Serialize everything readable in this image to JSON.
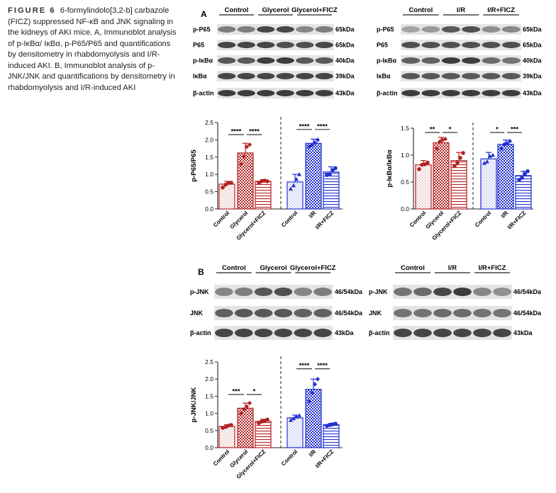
{
  "caption": {
    "label": "FIGURE 6",
    "text": "6-formylindolo[3,2-b] carbazole (FICZ) suppressed NF-κB and JNK signaling in the kidneys of AKI mice. A, Immunoblot analysis of p-IκBα/ IκBα, p-P65/P65 and quantifications by densitometry in rhabdomyolysis and I/R-induced AKI. B, Immunoblot analysis of p-JNK/JNK and quantifications by densitometry in rhabdomyolysis and I/R-induced AKI"
  },
  "colors": {
    "red": "#b22222",
    "blue": "#1f2fd0",
    "band": "#2a2a2a"
  },
  "blots": [
    {
      "id": "A-left",
      "panel": "A",
      "groups": [
        "Control",
        "Glycerol",
        "Glycerol+FICZ"
      ],
      "rows": [
        {
          "protein": "p-P65",
          "kda": "65kDa",
          "intensity": [
            0.55,
            0.55,
            0.85,
            0.85,
            0.5,
            0.55
          ]
        },
        {
          "protein": "P65",
          "kda": "65kDa",
          "intensity": [
            0.85,
            0.85,
            0.85,
            0.8,
            0.8,
            0.85
          ]
        },
        {
          "protein": "p-IκBα",
          "kda": "40kDa",
          "intensity": [
            0.75,
            0.75,
            0.9,
            0.9,
            0.75,
            0.75
          ]
        },
        {
          "protein": "IκBα",
          "kda": "39kDa",
          "intensity": [
            0.85,
            0.85,
            0.85,
            0.85,
            0.85,
            0.85
          ]
        },
        {
          "protein": "β-actin",
          "kda": "43kDa",
          "intensity": [
            0.9,
            0.9,
            0.9,
            0.9,
            0.9,
            0.9
          ]
        }
      ]
    },
    {
      "id": "A-right",
      "panel": "",
      "groups": [
        "Control",
        "I/R",
        "I/R+FICZ"
      ],
      "rows": [
        {
          "protein": "p-P65",
          "kda": "65kDa",
          "intensity": [
            0.35,
            0.4,
            0.75,
            0.8,
            0.45,
            0.5
          ]
        },
        {
          "protein": "P65",
          "kda": "65kDa",
          "intensity": [
            0.8,
            0.8,
            0.8,
            0.8,
            0.8,
            0.8
          ]
        },
        {
          "protein": "p-IκBα",
          "kda": "40kDa",
          "intensity": [
            0.7,
            0.7,
            0.9,
            0.9,
            0.65,
            0.6
          ]
        },
        {
          "protein": "IκBα",
          "kda": "39kDa",
          "intensity": [
            0.75,
            0.75,
            0.75,
            0.75,
            0.75,
            0.75
          ]
        },
        {
          "protein": "β-actin",
          "kda": "43kDa",
          "intensity": [
            0.9,
            0.9,
            0.9,
            0.9,
            0.9,
            0.9
          ]
        }
      ]
    },
    {
      "id": "B-left",
      "panel": "B",
      "groups": [
        "Control",
        "Glycerol",
        "Glycerol+FICZ"
      ],
      "rows": [
        {
          "protein": "p-JNK",
          "kda": "46/54kDa",
          "intensity": [
            0.5,
            0.55,
            0.75,
            0.8,
            0.5,
            0.55
          ]
        },
        {
          "protein": "JNK",
          "kda": "46/54kDa",
          "intensity": [
            0.7,
            0.75,
            0.75,
            0.75,
            0.7,
            0.7
          ]
        },
        {
          "protein": "β-actin",
          "kda": "43kDa",
          "intensity": [
            0.85,
            0.85,
            0.85,
            0.85,
            0.85,
            0.85
          ]
        }
      ]
    },
    {
      "id": "B-right",
      "panel": "",
      "groups": [
        "Control",
        "I/R",
        "I/R+FICZ"
      ],
      "rows": [
        {
          "protein": "p-JNK",
          "kda": "46/54kDa",
          "intensity": [
            0.6,
            0.65,
            0.85,
            0.9,
            0.5,
            0.45
          ]
        },
        {
          "protein": "JNK",
          "kda": "46/54kDa",
          "intensity": [
            0.6,
            0.6,
            0.65,
            0.65,
            0.6,
            0.6
          ]
        },
        {
          "protein": "β-actin",
          "kda": "43kDa",
          "intensity": [
            0.85,
            0.85,
            0.85,
            0.85,
            0.85,
            0.85
          ]
        }
      ]
    }
  ],
  "chart_data": [
    {
      "id": "p65",
      "type": "bar",
      "ylabel": "p-P65/P65",
      "ylim": [
        0,
        2.5
      ],
      "yticks": [
        "0.0",
        "0.5",
        "1.0",
        "1.5",
        "2.0",
        "2.5"
      ],
      "categories": [
        "Control",
        "Glycerol",
        "Glycerol+FICZ",
        "Control",
        "I/R",
        "I/R+FICZ"
      ],
      "values": [
        0.72,
        1.62,
        0.8,
        0.78,
        1.9,
        1.07
      ],
      "errors": [
        0.08,
        0.28,
        0.05,
        0.22,
        0.12,
        0.15
      ],
      "points": [
        [
          0.62,
          0.7,
          0.75,
          0.76
        ],
        [
          1.3,
          1.52,
          1.8,
          1.86
        ],
        [
          0.76,
          0.8,
          0.82,
          0.8
        ],
        [
          0.58,
          0.68,
          0.86,
          1.0
        ],
        [
          1.8,
          1.85,
          1.92,
          2.0
        ],
        [
          0.98,
          1.0,
          1.12,
          1.18
        ]
      ],
      "sig": [
        {
          "from": 0,
          "to": 1,
          "label": "****",
          "y": 2.15
        },
        {
          "from": 1,
          "to": 2,
          "label": "****",
          "y": 2.15
        },
        {
          "from": 3,
          "to": 4,
          "label": "****",
          "y": 2.3
        },
        {
          "from": 4,
          "to": 5,
          "label": "****",
          "y": 2.3
        }
      ]
    },
    {
      "id": "ikba",
      "type": "bar",
      "ylabel": "p-IκBα/IκBα",
      "ylim": [
        0,
        1.5
      ],
      "yticks": [
        "0.0",
        "0.5",
        "1.0",
        "1.5"
      ],
      "categories": [
        "Control",
        "Glycerol",
        "Glycerol+FICZ",
        "Control",
        "I/R",
        "I/R+FICZ"
      ],
      "values": [
        0.82,
        1.23,
        0.9,
        0.93,
        1.2,
        0.62
      ],
      "errors": [
        0.08,
        0.1,
        0.15,
        0.12,
        0.08,
        0.08
      ],
      "points": [
        [
          0.74,
          0.82,
          0.83,
          0.86
        ],
        [
          1.12,
          1.25,
          1.28,
          1.3
        ],
        [
          0.8,
          0.86,
          0.95,
          1.04
        ],
        [
          0.85,
          0.88,
          0.98,
          1.0
        ],
        [
          1.12,
          1.2,
          1.22,
          1.26
        ],
        [
          0.54,
          0.58,
          0.65,
          0.7
        ]
      ],
      "sig": [
        {
          "from": 0,
          "to": 1,
          "label": "**",
          "y": 1.42
        },
        {
          "from": 1,
          "to": 2,
          "label": "*",
          "y": 1.42
        },
        {
          "from": 3,
          "to": 4,
          "label": "*",
          "y": 1.42
        },
        {
          "from": 4,
          "to": 5,
          "label": "***",
          "y": 1.42
        }
      ]
    },
    {
      "id": "jnk",
      "type": "bar",
      "ylabel": "p-JNK/JNK",
      "ylim": [
        0,
        2.5
      ],
      "yticks": [
        "0.0",
        "0.5",
        "1.0",
        "1.5",
        "2.0",
        "2.5"
      ],
      "categories": [
        "Control",
        "Glycerol",
        "Glycerol+FICZ",
        "Control",
        "I/R",
        "I/R+FICZ"
      ],
      "values": [
        0.62,
        1.15,
        0.77,
        0.87,
        1.7,
        0.67
      ],
      "errors": [
        0.05,
        0.15,
        0.06,
        0.08,
        0.3,
        0.04
      ],
      "points": [
        [
          0.58,
          0.6,
          0.64,
          0.66
        ],
        [
          1.0,
          1.12,
          1.2,
          1.3
        ],
        [
          0.72,
          0.76,
          0.78,
          0.82
        ],
        [
          0.8,
          0.85,
          0.9,
          0.94
        ],
        [
          1.35,
          1.6,
          1.85,
          2.0
        ],
        [
          0.64,
          0.66,
          0.68,
          0.7
        ]
      ],
      "sig": [
        {
          "from": 0,
          "to": 1,
          "label": "***",
          "y": 1.55
        },
        {
          "from": 1,
          "to": 2,
          "label": "*",
          "y": 1.55
        },
        {
          "from": 3,
          "to": 4,
          "label": "****",
          "y": 2.3
        },
        {
          "from": 4,
          "to": 5,
          "label": "****",
          "y": 2.3
        }
      ]
    }
  ]
}
